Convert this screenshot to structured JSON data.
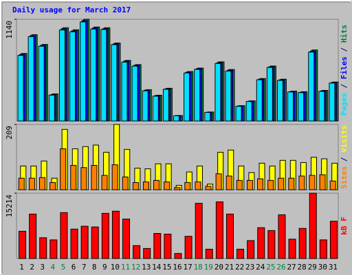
{
  "chart_data": [
    {
      "type": "bar",
      "title": "Daily usage for March 2017",
      "ylim": [
        0,
        1140
      ],
      "yticks": [
        1140
      ],
      "legend_separator": " / ",
      "series": [
        {
          "name": "Pages",
          "color": "#00e0ff",
          "values": [
            735,
            945,
            838,
            290,
            1020,
            1000,
            1110,
            1030,
            1025,
            855,
            660,
            615,
            338,
            278,
            355,
            58,
            538,
            578,
            96,
            645,
            560,
            165,
            218,
            462,
            600,
            455,
            325,
            318,
            772,
            332,
            425
          ]
        },
        {
          "name": "Files",
          "color": "#0000ff",
          "values": [
            746,
            956,
            848,
            297,
            1033,
            1011,
            1125,
            1042,
            1035,
            865,
            670,
            624,
            345,
            284,
            361,
            60,
            546,
            586,
            99,
            654,
            569,
            169,
            222,
            469,
            608,
            462,
            330,
            323,
            784,
            338,
            431
          ]
        },
        {
          "name": "Hits",
          "color": "#008040",
          "values": [
            757,
            967,
            858,
            304,
            1045,
            1022,
            1140,
            1053,
            1045,
            874,
            679,
            632,
            351,
            289,
            367,
            62,
            554,
            593,
            101,
            663,
            577,
            172,
            226,
            476,
            616,
            468,
            335,
            328,
            796,
            343,
            437
          ]
        }
      ]
    },
    {
      "type": "bar",
      "ylim": [
        0,
        209
      ],
      "yticks": [
        209
      ],
      "legend_separator": " / ",
      "series": [
        {
          "name": "Sites",
          "color": "#ff8000",
          "values": [
            37,
            37,
            39,
            23,
            131,
            78,
            71,
            78,
            46,
            80,
            41,
            23,
            25,
            30,
            25,
            7,
            23,
            25,
            11,
            51,
            44,
            30,
            30,
            35,
            30,
            37,
            37,
            44,
            46,
            48,
            28
          ]
        },
        {
          "name": "Visits",
          "color": "#ffff00",
          "values": [
            76,
            76,
            92,
            37,
            193,
            131,
            138,
            143,
            120,
            209,
            129,
            69,
            67,
            83,
            83,
            14,
            57,
            76,
            18,
            120,
            127,
            76,
            55,
            85,
            76,
            94,
            94,
            87,
            104,
            99,
            85
          ]
        }
      ]
    },
    {
      "type": "bar",
      "ylim": [
        0,
        15214
      ],
      "yticks": [
        15214
      ],
      "categories": [
        "1",
        "2",
        "3",
        "4",
        "5",
        "6",
        "7",
        "8",
        "9",
        "10",
        "11",
        "12",
        "13",
        "14",
        "15",
        "16",
        "17",
        "18",
        "19",
        "20",
        "21",
        "22",
        "23",
        "24",
        "25",
        "26",
        "27",
        "28",
        "29",
        "30",
        "31"
      ],
      "category_colors": [
        "#000000",
        "#000000",
        "#000000",
        "#008040",
        "#008040",
        "#000000",
        "#000000",
        "#000000",
        "#000000",
        "#000000",
        "#008040",
        "#008040",
        "#000000",
        "#000000",
        "#000000",
        "#000000",
        "#000000",
        "#008040",
        "#008040",
        "#000000",
        "#000000",
        "#000000",
        "#000000",
        "#000000",
        "#008040",
        "#008040",
        "#000000",
        "#000000",
        "#000000",
        "#000000",
        "#000000"
      ],
      "series": [
        {
          "name": "kB F",
          "color": "#ff0000",
          "values": [
            6346,
            10353,
            4842,
            4341,
            10687,
            6847,
            7515,
            7348,
            10520,
            11021,
            9185,
            3005,
            2337,
            5844,
            5677,
            1169,
            5176,
            12858,
            2171,
            13192,
            10353,
            2171,
            4174,
            7181,
            6513,
            10186,
            4508,
            7014,
            15214,
            4341,
            8683
          ]
        }
      ]
    }
  ]
}
